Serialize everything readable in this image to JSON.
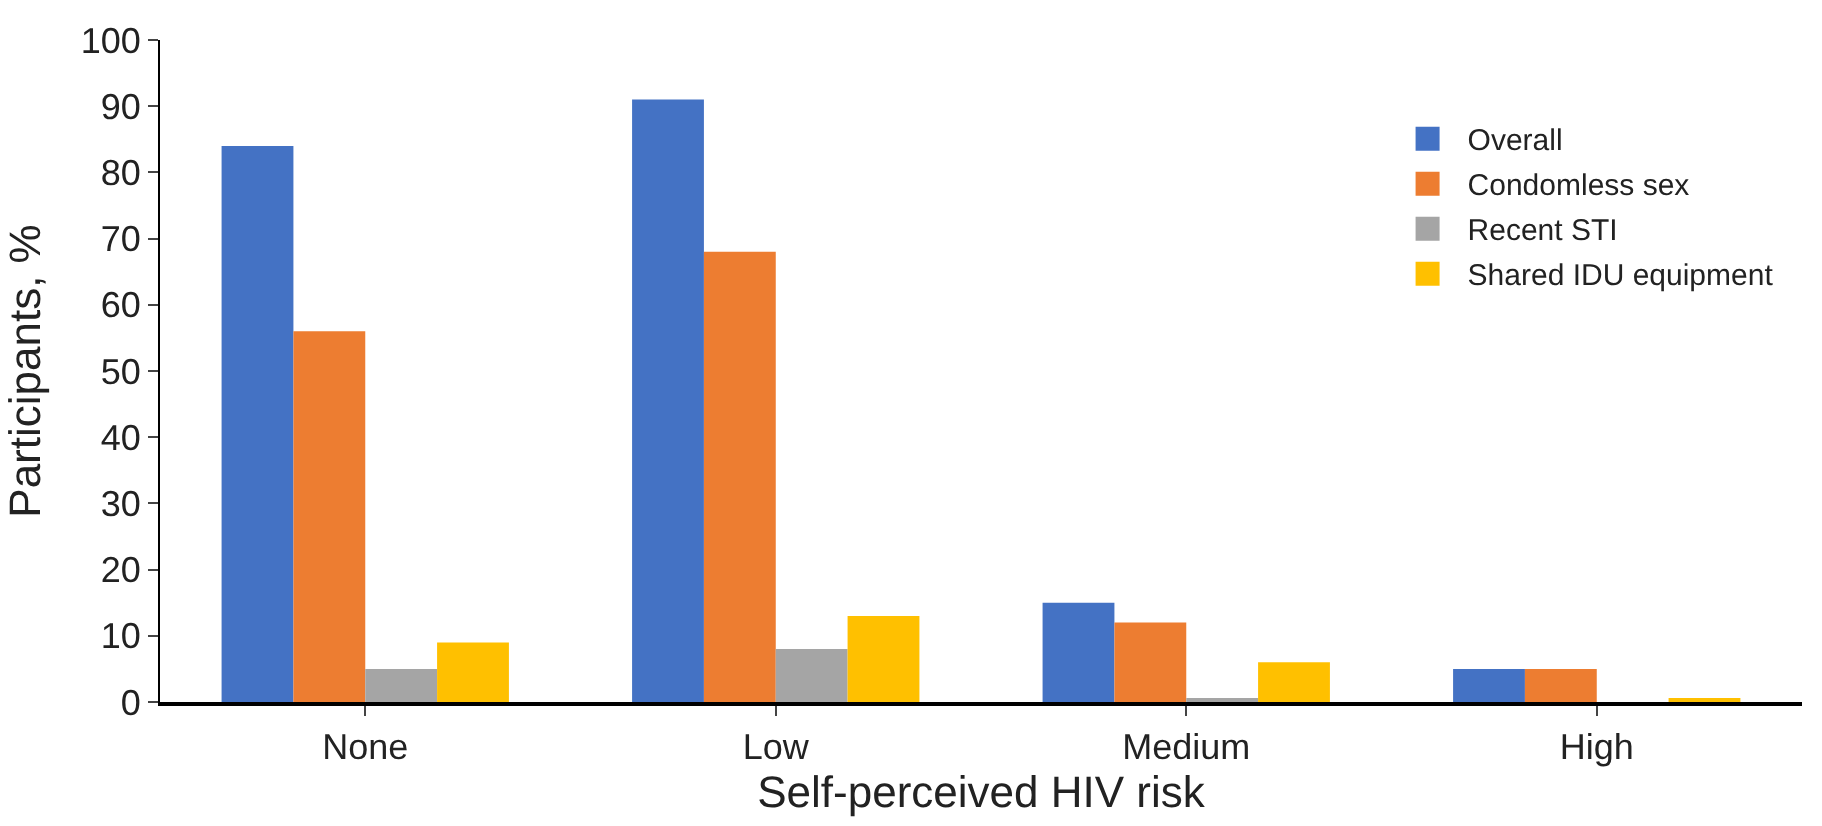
{
  "chart_data": {
    "type": "bar",
    "xlabel": "Self-perceived HIV risk",
    "ylabel": "Participants, %",
    "categories": [
      "None",
      "Low",
      "Medium",
      "High"
    ],
    "series": [
      {
        "name": "Overall",
        "color": "#4472c4",
        "values": [
          84,
          91,
          15,
          5
        ]
      },
      {
        "name": "Condomless sex",
        "color": "#ed7d31",
        "values": [
          56,
          68,
          12,
          5
        ]
      },
      {
        "name": "Recent STI",
        "color": "#a5a5a5",
        "values": [
          5,
          8,
          0.5,
          0
        ]
      },
      {
        "name": "Shared IDU equipment",
        "color": "#ffc000",
        "values": [
          9,
          13,
          6,
          0.5
        ]
      }
    ],
    "ylim": [
      0,
      100
    ],
    "yticks": [
      0,
      10,
      20,
      30,
      40,
      50,
      60,
      70,
      80,
      90,
      100
    ],
    "legend": "top right"
  }
}
